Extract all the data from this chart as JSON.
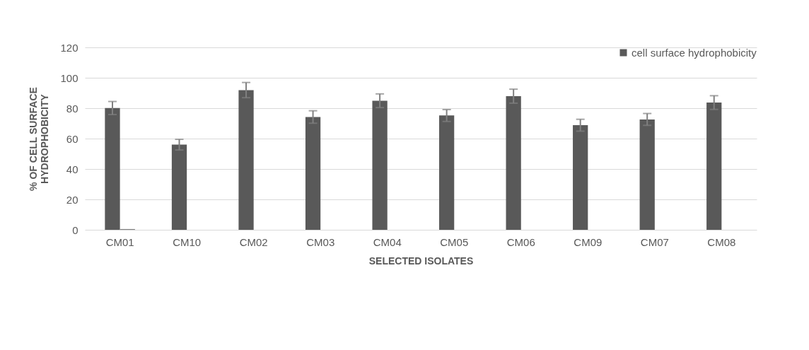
{
  "chart_data": {
    "type": "bar",
    "xlabel": "SELECTED ISOLATES",
    "ylabel": "% OF CELL SURFACE HYDROPHOBICITY",
    "categories": [
      "CM01",
      "CM10",
      "CM02",
      "CM03",
      "CM04",
      "CM05",
      "CM06",
      "CM09",
      "CM07",
      "CM08"
    ],
    "series": [
      {
        "name": "cell surface hydrophobicity",
        "color": "#595959",
        "values": [
          80.1,
          56.0,
          91.9,
          74.2,
          84.9,
          75.2,
          87.9,
          68.8,
          72.6,
          83.7
        ],
        "errors": [
          4.3,
          3.5,
          5.0,
          4.1,
          4.5,
          3.9,
          4.6,
          3.9,
          3.9,
          4.5
        ]
      },
      {
        "color": "#7f7f7f",
        "values": [
          0.5,
          null,
          null,
          null,
          null,
          null,
          null,
          null,
          null,
          null
        ]
      }
    ],
    "ylim": [
      0,
      120
    ],
    "yticks": [
      0,
      20,
      40,
      60,
      80,
      100,
      120
    ],
    "grid": "y",
    "legend": "top right"
  }
}
